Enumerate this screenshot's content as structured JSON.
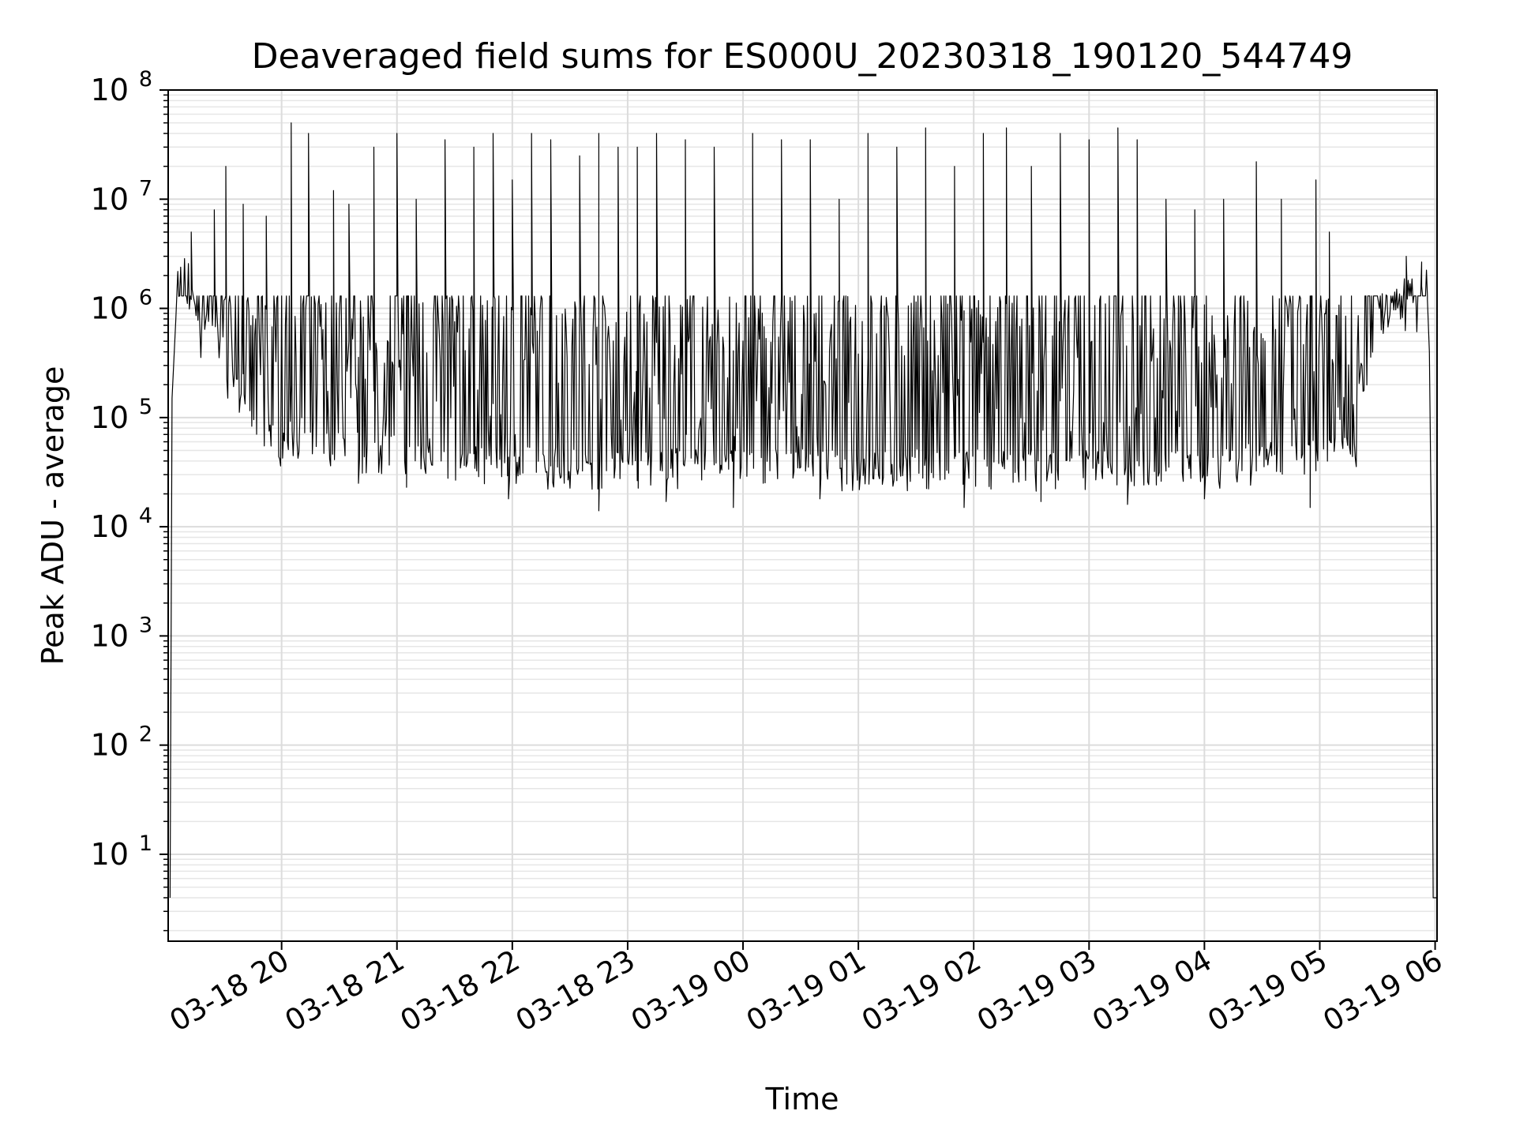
{
  "chart_data": {
    "type": "line",
    "title": "Deaveraged field sums for ES000U_20230318_190120_544749",
    "xlabel": "Time",
    "ylabel": "Peak ADU - average",
    "y_scale": "log",
    "ylim": [
      1.6,
      100000000
    ],
    "xlim": [
      "2023-03-18 19:01",
      "2023-03-19 06:01"
    ],
    "grid": true,
    "x_ticks": [
      {
        "value": "2023-03-18 20:00",
        "label": "03-18 20"
      },
      {
        "value": "2023-03-18 21:00",
        "label": "03-18 21"
      },
      {
        "value": "2023-03-18 22:00",
        "label": "03-18 22"
      },
      {
        "value": "2023-03-18 23:00",
        "label": "03-18 23"
      },
      {
        "value": "2023-03-19 00:00",
        "label": "03-19 00"
      },
      {
        "value": "2023-03-19 01:00",
        "label": "03-19 01"
      },
      {
        "value": "2023-03-19 02:00",
        "label": "03-19 02"
      },
      {
        "value": "2023-03-19 03:00",
        "label": "03-19 03"
      },
      {
        "value": "2023-03-19 04:00",
        "label": "03-19 04"
      },
      {
        "value": "2023-03-19 05:00",
        "label": "03-19 05"
      },
      {
        "value": "2023-03-19 06:00",
        "label": "03-19 06"
      }
    ],
    "y_ticks": [
      {
        "value": 10,
        "base": "10",
        "exp": "1"
      },
      {
        "value": 100,
        "base": "10",
        "exp": "2"
      },
      {
        "value": 1000,
        "base": "10",
        "exp": "3"
      },
      {
        "value": 10000,
        "base": "10",
        "exp": "4"
      },
      {
        "value": 100000,
        "base": "10",
        "exp": "5"
      },
      {
        "value": 1000000,
        "base": "10",
        "exp": "6"
      },
      {
        "value": 10000000,
        "base": "10",
        "exp": "7"
      },
      {
        "value": 100000000,
        "base": "10",
        "exp": "8"
      }
    ],
    "series": [
      {
        "color": "#000000",
        "points": [
          [
            "2023-03-18 19:02",
            4
          ],
          [
            "2023-03-18 19:03",
            150000
          ],
          [
            "2023-03-18 19:05",
            800000
          ],
          [
            "2023-03-18 19:08",
            1200000
          ],
          [
            "2023-03-18 19:11",
            1600000
          ],
          [
            "2023-03-18 19:14",
            900000
          ],
          [
            "2023-03-18 19:17",
            500000
          ],
          [
            "2023-03-18 19:20",
            450000
          ],
          [
            "2023-03-18 19:23",
            600000
          ],
          [
            "2023-03-18 19:26",
            400000
          ],
          [
            "2023-03-18 19:29",
            250000
          ],
          [
            "2023-03-18 19:32",
            150000
          ],
          [
            "2023-03-18 19:36",
            100000
          ],
          [
            "2023-03-18 19:40",
            70000
          ],
          [
            "2023-03-18 19:45",
            50000
          ],
          [
            "2023-03-18 19:50",
            45000
          ],
          [
            "2023-03-18 19:55",
            40000
          ],
          [
            "2023-03-18 20:00",
            35000
          ],
          [
            "2023-03-18 20:06",
            40000
          ],
          [
            "2023-03-18 20:12",
            45000
          ],
          [
            "2023-03-18 20:18",
            40000
          ],
          [
            "2023-03-18 20:24",
            35000
          ],
          [
            "2023-03-18 20:30",
            35000
          ],
          [
            "2023-03-18 20:40",
            30000
          ],
          [
            "2023-03-18 20:50",
            28000
          ],
          [
            "2023-03-18 21:00",
            30000
          ],
          [
            "2023-03-18 21:20",
            28000
          ],
          [
            "2023-03-18 21:40",
            24000
          ],
          [
            "2023-03-18 22:00",
            22000
          ],
          [
            "2023-03-18 23:00",
            21000
          ],
          [
            "2023-03-19 00:00",
            21000
          ],
          [
            "2023-03-19 01:00",
            21000
          ],
          [
            "2023-03-19 02:00",
            21000
          ],
          [
            "2023-03-19 03:00",
            21000
          ],
          [
            "2023-03-19 04:00",
            22000
          ],
          [
            "2023-03-19 05:00",
            25000
          ],
          [
            "2023-03-19 05:21",
            30000
          ],
          [
            "2023-03-19 05:23",
            100000
          ],
          [
            "2023-03-19 05:26",
            300000
          ],
          [
            "2023-03-19 05:30",
            500000
          ],
          [
            "2023-03-19 05:35",
            600000
          ],
          [
            "2023-03-19 05:40",
            700000
          ],
          [
            "2023-03-19 05:45",
            800000
          ],
          [
            "2023-03-19 05:50",
            1100000
          ],
          [
            "2023-03-19 05:53",
            1600000
          ],
          [
            "2023-03-19 05:56",
            1200000
          ],
          [
            "2023-03-19 05:57",
            400000
          ],
          [
            "2023-03-19 05:58",
            10000
          ],
          [
            "2023-03-19 05:59",
            4
          ],
          [
            "2023-03-19 06:01",
            4
          ]
        ],
        "peaks": [
          [
            "2023-03-18 19:13",
            5000000
          ],
          [
            "2023-03-18 19:25",
            8000000
          ],
          [
            "2023-03-18 19:31",
            20000000
          ],
          [
            "2023-03-18 19:40",
            9000000
          ],
          [
            "2023-03-18 19:52",
            7000000
          ],
          [
            "2023-03-18 20:05",
            50000000
          ],
          [
            "2023-03-18 20:14",
            40000000
          ],
          [
            "2023-03-18 20:27",
            12000000
          ],
          [
            "2023-03-18 20:35",
            9000000
          ],
          [
            "2023-03-18 20:48",
            30000000
          ],
          [
            "2023-03-18 21:00",
            40000000
          ],
          [
            "2023-03-18 21:10",
            10000000
          ],
          [
            "2023-03-18 21:25",
            35000000
          ],
          [
            "2023-03-18 21:40",
            30000000
          ],
          [
            "2023-03-18 21:50",
            40000000
          ],
          [
            "2023-03-18 22:00",
            15000000
          ],
          [
            "2023-03-18 22:10",
            40000000
          ],
          [
            "2023-03-18 22:20",
            35000000
          ],
          [
            "2023-03-18 22:35",
            25000000
          ],
          [
            "2023-03-18 22:45",
            40000000
          ],
          [
            "2023-03-18 22:55",
            30000000
          ],
          [
            "2023-03-18 23:05",
            30000000
          ],
          [
            "2023-03-18 23:15",
            40000000
          ],
          [
            "2023-03-18 23:30",
            35000000
          ],
          [
            "2023-03-18 23:45",
            30000000
          ],
          [
            "2023-03-19 00:05",
            40000000
          ],
          [
            "2023-03-19 00:20",
            35000000
          ],
          [
            "2023-03-19 00:35",
            35000000
          ],
          [
            "2023-03-19 00:50",
            10000000
          ],
          [
            "2023-03-19 01:05",
            40000000
          ],
          [
            "2023-03-19 01:20",
            30000000
          ],
          [
            "2023-03-19 01:35",
            45000000
          ],
          [
            "2023-03-19 01:50",
            20000000
          ],
          [
            "2023-03-19 02:05",
            40000000
          ],
          [
            "2023-03-19 02:17",
            45000000
          ],
          [
            "2023-03-19 02:30",
            20000000
          ],
          [
            "2023-03-19 02:45",
            40000000
          ],
          [
            "2023-03-19 03:00",
            35000000
          ],
          [
            "2023-03-19 03:15",
            45000000
          ],
          [
            "2023-03-19 03:25",
            35000000
          ],
          [
            "2023-03-19 03:40",
            10000000
          ],
          [
            "2023-03-19 03:55",
            8000000
          ],
          [
            "2023-03-19 04:10",
            10000000
          ],
          [
            "2023-03-19 04:27",
            22000000
          ],
          [
            "2023-03-19 04:40",
            10000000
          ],
          [
            "2023-03-19 04:58",
            15000000
          ],
          [
            "2023-03-19 05:05",
            5000000
          ],
          [
            "2023-03-19 05:45",
            3000000
          ]
        ],
        "troughs": [
          [
            "2023-03-18 20:40",
            25000
          ],
          [
            "2023-03-18 21:05",
            23000
          ],
          [
            "2023-03-18 21:58",
            18000
          ],
          [
            "2023-03-18 22:45",
            14000
          ],
          [
            "2023-03-18 23:20",
            17000
          ],
          [
            "2023-03-18 23:55",
            15000
          ],
          [
            "2023-03-19 00:40",
            18000
          ],
          [
            "2023-03-19 01:55",
            15000
          ],
          [
            "2023-03-19 02:35",
            17000
          ],
          [
            "2023-03-19 03:20",
            16000
          ],
          [
            "2023-03-19 04:00",
            18000
          ],
          [
            "2023-03-19 04:55",
            15000
          ]
        ]
      }
    ]
  }
}
